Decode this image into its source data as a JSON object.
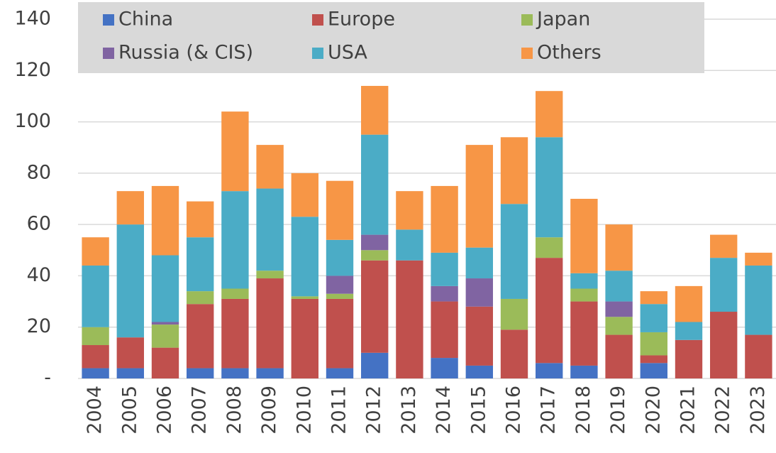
{
  "chart_data": {
    "type": "stacked_bar",
    "categories": [
      "2004",
      "2005",
      "2006",
      "2007",
      "2008",
      "2009",
      "2010",
      "2011",
      "2012",
      "2013",
      "2014",
      "2015",
      "2016",
      "2017",
      "2018",
      "2019",
      "2020",
      "2021",
      "2022",
      "2023"
    ],
    "series": [
      {
        "name": "China",
        "color": "#4472c4",
        "values": [
          4,
          4,
          0,
          4,
          4,
          4,
          0,
          4,
          10,
          0,
          8,
          5,
          0,
          6,
          5,
          0,
          6,
          0,
          0,
          0
        ]
      },
      {
        "name": "Europe",
        "color": "#c0504d",
        "values": [
          9,
          12,
          12,
          25,
          27,
          35,
          31,
          27,
          36,
          46,
          22,
          23,
          19,
          41,
          25,
          17,
          3,
          15,
          26,
          17
        ]
      },
      {
        "name": "Japan",
        "color": "#9bbb59",
        "values": [
          7,
          0,
          9,
          5,
          4,
          3,
          1,
          2,
          4,
          0,
          0,
          0,
          12,
          8,
          5,
          7,
          9,
          0,
          0,
          0
        ]
      },
      {
        "name": "Russia (& CIS)",
        "color": "#8064a2",
        "values": [
          0,
          0,
          1,
          0,
          0,
          0,
          0,
          7,
          6,
          0,
          6,
          11,
          0,
          0,
          0,
          6,
          0,
          0,
          0,
          0
        ]
      },
      {
        "name": "USA",
        "color": "#4bacc6",
        "values": [
          24,
          44,
          26,
          21,
          38,
          32,
          31,
          14,
          39,
          12,
          13,
          12,
          37,
          39,
          6,
          12,
          11,
          7,
          21,
          27
        ]
      },
      {
        "name": "Others",
        "color": "#f79646",
        "values": [
          11,
          13,
          27,
          14,
          31,
          17,
          17,
          23,
          19,
          15,
          26,
          40,
          26,
          18,
          29,
          18,
          5,
          14,
          9,
          5
        ]
      }
    ],
    "ylim": [
      0,
      140
    ],
    "yticks": [
      {
        "value": 0,
        "label": "-"
      },
      20,
      40,
      60,
      80,
      100,
      120,
      140
    ],
    "grid": true,
    "legend": "top"
  }
}
